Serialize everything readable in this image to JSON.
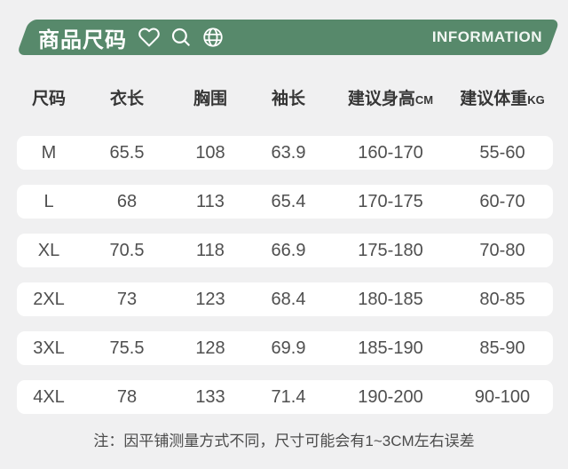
{
  "header": {
    "title": "商品尺码",
    "badge": "INFORMATION",
    "bar_color": "#57896b",
    "icons": [
      "heart-icon",
      "search-icon",
      "globe-icon"
    ]
  },
  "table": {
    "columns": [
      {
        "label": "尺码",
        "unit": ""
      },
      {
        "label": "衣长",
        "unit": ""
      },
      {
        "label": "胸围",
        "unit": ""
      },
      {
        "label": "袖长",
        "unit": ""
      },
      {
        "label": "建议身高",
        "unit": "CM"
      },
      {
        "label": "建议体重",
        "unit": "KG"
      }
    ],
    "rows": [
      {
        "size": "M",
        "length": "65.5",
        "chest": "108",
        "sleeve": "63.9",
        "height": "160-170",
        "weight": "55-60"
      },
      {
        "size": "L",
        "length": "68",
        "chest": "113",
        "sleeve": "65.4",
        "height": "170-175",
        "weight": "60-70"
      },
      {
        "size": "XL",
        "length": "70.5",
        "chest": "118",
        "sleeve": "66.9",
        "height": "175-180",
        "weight": "70-80"
      },
      {
        "size": "2XL",
        "length": "73",
        "chest": "123",
        "sleeve": "68.4",
        "height": "180-185",
        "weight": "80-85"
      },
      {
        "size": "3XL",
        "length": "75.5",
        "chest": "128",
        "sleeve": "69.9",
        "height": "185-190",
        "weight": "85-90"
      },
      {
        "size": "4XL",
        "length": "78",
        "chest": "133",
        "sleeve": "71.4",
        "height": "190-200",
        "weight": "90-100"
      }
    ]
  },
  "note": "注：因平铺测量方式不同，尺寸可能会有1~3CM左右误差",
  "colors": {
    "background": "#f0f0f1",
    "band": "#ffffff",
    "bar_green": "#57896b",
    "header_text": "#363636",
    "data_text": "#4f4f4f"
  },
  "chart_data": {
    "type": "table",
    "title": "商品尺码",
    "columns": [
      "尺码",
      "衣长",
      "胸围",
      "袖长",
      "建议身高CM",
      "建议体重KG"
    ],
    "rows": [
      [
        "M",
        "65.5",
        "108",
        "63.9",
        "160-170",
        "55-60"
      ],
      [
        "L",
        "68",
        "113",
        "65.4",
        "170-175",
        "60-70"
      ],
      [
        "XL",
        "70.5",
        "118",
        "66.9",
        "175-180",
        "70-80"
      ],
      [
        "2XL",
        "73",
        "123",
        "68.4",
        "180-185",
        "80-85"
      ],
      [
        "3XL",
        "75.5",
        "128",
        "69.9",
        "185-190",
        "85-90"
      ],
      [
        "4XL",
        "78",
        "133",
        "71.4",
        "190-200",
        "90-100"
      ]
    ],
    "note": "注：因平铺测量方式不同，尺寸可能会有1~3CM左右误差"
  }
}
